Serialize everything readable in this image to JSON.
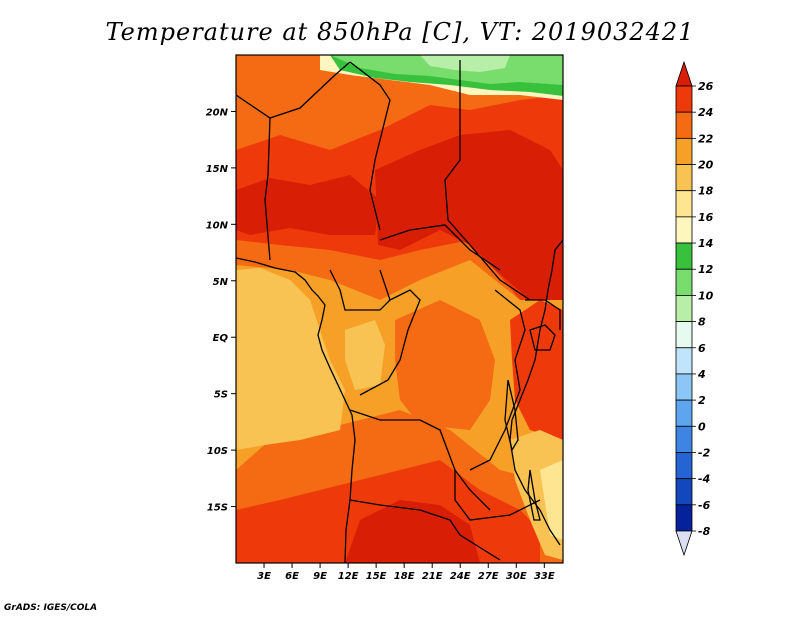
{
  "title": "Temperature at 850hPa [C], VT: 2019032421",
  "credit": "GrADS: IGES/COLA",
  "map": {
    "lat_labels": [
      {
        "label": "20N",
        "lat": 20
      },
      {
        "label": "15N",
        "lat": 15
      },
      {
        "label": "10N",
        "lat": 10
      },
      {
        "label": "5N",
        "lat": 5
      },
      {
        "label": "EQ",
        "lat": 0
      },
      {
        "label": "5S",
        "lat": -5
      },
      {
        "label": "10S",
        "lat": -10
      },
      {
        "label": "15S",
        "lat": -15
      }
    ],
    "lon_labels": [
      {
        "label": "3E",
        "lon": 3
      },
      {
        "label": "6E",
        "lon": 6
      },
      {
        "label": "9E",
        "lon": 9
      },
      {
        "label": "12E",
        "lon": 12
      },
      {
        "label": "15E",
        "lon": 15
      },
      {
        "label": "18E",
        "lon": 18
      },
      {
        "label": "21E",
        "lon": 21
      },
      {
        "label": "24E",
        "lon": 24
      },
      {
        "label": "27E",
        "lon": 27
      },
      {
        "label": "30E",
        "lon": 30
      },
      {
        "label": "33E",
        "lon": 33
      }
    ],
    "lon_range": [
      0,
      35
    ],
    "lat_range": [
      -20,
      25
    ]
  },
  "colorbar": {
    "levels": [
      {
        "label": "26",
        "color": "#d81e05"
      },
      {
        "label": "24",
        "color": "#ee3a0b"
      },
      {
        "label": "22",
        "color": "#f46b13"
      },
      {
        "label": "20",
        "color": "#f7a028"
      },
      {
        "label": "18",
        "color": "#f9c354"
      },
      {
        "label": "16",
        "color": "#fde592"
      },
      {
        "label": "14",
        "color": "#fdf7bf"
      },
      {
        "label": "12",
        "color": "#37c13d"
      },
      {
        "label": "10",
        "color": "#79dd6d"
      },
      {
        "label": "8",
        "color": "#b7efa8"
      },
      {
        "label": "6",
        "color": "#e6faf0"
      },
      {
        "label": "4",
        "color": "#bfe4fb"
      },
      {
        "label": "2",
        "color": "#8cc6f7"
      },
      {
        "label": "0",
        "color": "#5ea5f0"
      },
      {
        "label": "-2",
        "color": "#3d84e3"
      },
      {
        "label": "-4",
        "color": "#2564d3"
      },
      {
        "label": "-6",
        "color": "#1347bd"
      },
      {
        "label": "-8",
        "color": "#06229a"
      }
    ],
    "bottom_triangle_color": "#dde0f5"
  }
}
